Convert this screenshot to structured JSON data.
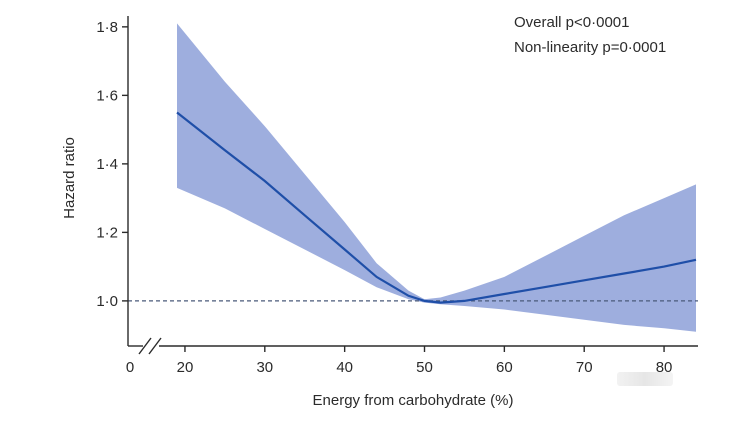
{
  "chart_data": {
    "type": "line",
    "title": "",
    "xlabel": "Energy from carbohydrate (%)",
    "ylabel": "Hazard ratio",
    "x_ticks": [
      0,
      20,
      30,
      40,
      50,
      60,
      70,
      80
    ],
    "y_ticks": [
      1.0,
      1.2,
      1.4,
      1.6,
      1.8
    ],
    "x_tick_labels": [
      "0",
      "20",
      "30",
      "40",
      "50",
      "60",
      "70",
      "80"
    ],
    "y_tick_labels": [
      "1·0",
      "1·2",
      "1·4",
      "1·6",
      "1·8"
    ],
    "xlim": [
      17,
      84
    ],
    "ylim": [
      0.88,
      1.82
    ],
    "x_axis_break": true,
    "reference_line": 1.0,
    "annotations": [
      "Overall p<0·0001",
      "Non-linearity p=0·0001"
    ],
    "series": [
      {
        "x": [
          19,
          25,
          30,
          35,
          40,
          44,
          48,
          50,
          52,
          55,
          60,
          65,
          70,
          75,
          80,
          84
        ],
        "values": [
          1.55,
          1.44,
          1.35,
          1.25,
          1.15,
          1.07,
          1.015,
          1.0,
          0.995,
          1.0,
          1.02,
          1.04,
          1.06,
          1.08,
          1.1,
          1.12
        ],
        "lower": [
          1.33,
          1.27,
          1.21,
          1.15,
          1.09,
          1.04,
          1.005,
          0.995,
          0.99,
          0.985,
          0.975,
          0.96,
          0.945,
          0.93,
          0.92,
          0.91
        ],
        "upper": [
          1.81,
          1.64,
          1.51,
          1.37,
          1.23,
          1.11,
          1.03,
          1.005,
          1.01,
          1.03,
          1.07,
          1.13,
          1.19,
          1.25,
          1.3,
          1.34
        ]
      }
    ],
    "colors": {
      "line": "#1f4fa8",
      "band": "#8da0d8",
      "reference": "#4a5a7a",
      "axis": "#2b2b2b"
    },
    "grid": false,
    "legend": "none"
  }
}
